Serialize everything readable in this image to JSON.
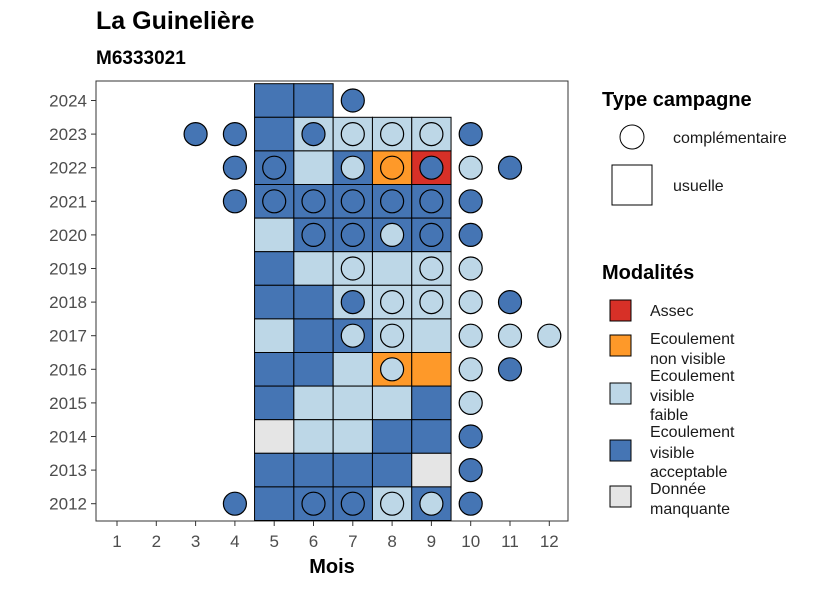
{
  "chart_data": {
    "type": "heatmap",
    "title": "La Guinelière",
    "subtitle": "M6333021",
    "xlabel": "Mois",
    "x_ticks": [
      "1",
      "2",
      "3",
      "4",
      "5",
      "6",
      "7",
      "8",
      "9",
      "10",
      "11",
      "12"
    ],
    "y_ticks": [
      "2024",
      "2023",
      "2022",
      "2021",
      "2020",
      "2019",
      "2018",
      "2017",
      "2016",
      "2015",
      "2014",
      "2013",
      "2012"
    ],
    "colors": {
      "assec": "#d73027",
      "ecoulement_non_visible": "#fe9929",
      "ecoulement_visible_faible": "#bdd7e7",
      "ecoulement_visible_acceptable": "#4575b4",
      "donnee_manquante": "#e5e5e5"
    },
    "usuelle_tiles": [
      {
        "year": 2024,
        "month": 5,
        "modalite": "ecoulement_visible_acceptable"
      },
      {
        "year": 2024,
        "month": 6,
        "modalite": "ecoulement_visible_acceptable"
      },
      {
        "year": 2023,
        "month": 5,
        "modalite": "ecoulement_visible_acceptable"
      },
      {
        "year": 2023,
        "month": 6,
        "modalite": "ecoulement_visible_faible"
      },
      {
        "year": 2023,
        "month": 7,
        "modalite": "ecoulement_visible_faible"
      },
      {
        "year": 2023,
        "month": 8,
        "modalite": "ecoulement_visible_faible"
      },
      {
        "year": 2023,
        "month": 9,
        "modalite": "ecoulement_visible_faible"
      },
      {
        "year": 2022,
        "month": 5,
        "modalite": "ecoulement_visible_acceptable"
      },
      {
        "year": 2022,
        "month": 6,
        "modalite": "ecoulement_visible_faible"
      },
      {
        "year": 2022,
        "month": 7,
        "modalite": "ecoulement_visible_acceptable"
      },
      {
        "year": 2022,
        "month": 8,
        "modalite": "ecoulement_non_visible"
      },
      {
        "year": 2022,
        "month": 9,
        "modalite": "assec"
      },
      {
        "year": 2021,
        "month": 5,
        "modalite": "ecoulement_visible_acceptable"
      },
      {
        "year": 2021,
        "month": 6,
        "modalite": "ecoulement_visible_acceptable"
      },
      {
        "year": 2021,
        "month": 7,
        "modalite": "ecoulement_visible_acceptable"
      },
      {
        "year": 2021,
        "month": 8,
        "modalite": "ecoulement_visible_acceptable"
      },
      {
        "year": 2021,
        "month": 9,
        "modalite": "ecoulement_visible_acceptable"
      },
      {
        "year": 2020,
        "month": 5,
        "modalite": "ecoulement_visible_faible"
      },
      {
        "year": 2020,
        "month": 6,
        "modalite": "ecoulement_visible_acceptable"
      },
      {
        "year": 2020,
        "month": 7,
        "modalite": "ecoulement_visible_acceptable"
      },
      {
        "year": 2020,
        "month": 8,
        "modalite": "ecoulement_visible_acceptable"
      },
      {
        "year": 2020,
        "month": 9,
        "modalite": "ecoulement_visible_acceptable"
      },
      {
        "year": 2019,
        "month": 5,
        "modalite": "ecoulement_visible_acceptable"
      },
      {
        "year": 2019,
        "month": 6,
        "modalite": "ecoulement_visible_faible"
      },
      {
        "year": 2019,
        "month": 7,
        "modalite": "ecoulement_visible_faible"
      },
      {
        "year": 2019,
        "month": 8,
        "modalite": "ecoulement_visible_faible"
      },
      {
        "year": 2019,
        "month": 9,
        "modalite": "ecoulement_visible_faible"
      },
      {
        "year": 2018,
        "month": 5,
        "modalite": "ecoulement_visible_acceptable"
      },
      {
        "year": 2018,
        "month": 6,
        "modalite": "ecoulement_visible_acceptable"
      },
      {
        "year": 2018,
        "month": 7,
        "modalite": "ecoulement_visible_faible"
      },
      {
        "year": 2018,
        "month": 8,
        "modalite": "ecoulement_visible_faible"
      },
      {
        "year": 2018,
        "month": 9,
        "modalite": "ecoulement_visible_faible"
      },
      {
        "year": 2017,
        "month": 5,
        "modalite": "ecoulement_visible_faible"
      },
      {
        "year": 2017,
        "month": 6,
        "modalite": "ecoulement_visible_acceptable"
      },
      {
        "year": 2017,
        "month": 7,
        "modalite": "ecoulement_visible_acceptable"
      },
      {
        "year": 2017,
        "month": 8,
        "modalite": "ecoulement_visible_faible"
      },
      {
        "year": 2017,
        "month": 9,
        "modalite": "ecoulement_visible_faible"
      },
      {
        "year": 2016,
        "month": 5,
        "modalite": "ecoulement_visible_acceptable"
      },
      {
        "year": 2016,
        "month": 6,
        "modalite": "ecoulement_visible_acceptable"
      },
      {
        "year": 2016,
        "month": 7,
        "modalite": "ecoulement_visible_faible"
      },
      {
        "year": 2016,
        "month": 8,
        "modalite": "ecoulement_non_visible"
      },
      {
        "year": 2016,
        "month": 9,
        "modalite": "ecoulement_non_visible"
      },
      {
        "year": 2015,
        "month": 5,
        "modalite": "ecoulement_visible_acceptable"
      },
      {
        "year": 2015,
        "month": 6,
        "modalite": "ecoulement_visible_faible"
      },
      {
        "year": 2015,
        "month": 7,
        "modalite": "ecoulement_visible_faible"
      },
      {
        "year": 2015,
        "month": 8,
        "modalite": "ecoulement_visible_faible"
      },
      {
        "year": 2015,
        "month": 9,
        "modalite": "ecoulement_visible_acceptable"
      },
      {
        "year": 2014,
        "month": 5,
        "modalite": "donnee_manquante"
      },
      {
        "year": 2014,
        "month": 6,
        "modalite": "ecoulement_visible_faible"
      },
      {
        "year": 2014,
        "month": 7,
        "modalite": "ecoulement_visible_faible"
      },
      {
        "year": 2014,
        "month": 8,
        "modalite": "ecoulement_visible_acceptable"
      },
      {
        "year": 2014,
        "month": 9,
        "modalite": "ecoulement_visible_acceptable"
      },
      {
        "year": 2013,
        "month": 5,
        "modalite": "ecoulement_visible_acceptable"
      },
      {
        "year": 2013,
        "month": 6,
        "modalite": "ecoulement_visible_acceptable"
      },
      {
        "year": 2013,
        "month": 7,
        "modalite": "ecoulement_visible_acceptable"
      },
      {
        "year": 2013,
        "month": 8,
        "modalite": "ecoulement_visible_acceptable"
      },
      {
        "year": 2013,
        "month": 9,
        "modalite": "donnee_manquante"
      },
      {
        "year": 2012,
        "month": 5,
        "modalite": "ecoulement_visible_acceptable"
      },
      {
        "year": 2012,
        "month": 6,
        "modalite": "ecoulement_visible_acceptable"
      },
      {
        "year": 2012,
        "month": 7,
        "modalite": "ecoulement_visible_acceptable"
      },
      {
        "year": 2012,
        "month": 8,
        "modalite": "ecoulement_visible_faible"
      },
      {
        "year": 2012,
        "month": 9,
        "modalite": "ecoulement_visible_acceptable"
      }
    ],
    "complementaire_points": [
      {
        "year": 2024,
        "month": 7,
        "modalite": "ecoulement_visible_acceptable"
      },
      {
        "year": 2023,
        "month": 3,
        "modalite": "ecoulement_visible_acceptable"
      },
      {
        "year": 2023,
        "month": 4,
        "modalite": "ecoulement_visible_acceptable"
      },
      {
        "year": 2023,
        "month": 6,
        "modalite": "ecoulement_visible_acceptable"
      },
      {
        "year": 2023,
        "month": 7,
        "modalite": "ecoulement_visible_faible"
      },
      {
        "year": 2023,
        "month": 8,
        "modalite": "ecoulement_visible_faible"
      },
      {
        "year": 2023,
        "month": 9,
        "modalite": "ecoulement_visible_faible"
      },
      {
        "year": 2023,
        "month": 10,
        "modalite": "ecoulement_visible_acceptable"
      },
      {
        "year": 2022,
        "month": 4,
        "modalite": "ecoulement_visible_acceptable"
      },
      {
        "year": 2022,
        "month": 5,
        "modalite": "ecoulement_visible_acceptable"
      },
      {
        "year": 2022,
        "month": 7,
        "modalite": "ecoulement_visible_faible"
      },
      {
        "year": 2022,
        "month": 8,
        "modalite": "ecoulement_non_visible"
      },
      {
        "year": 2022,
        "month": 9,
        "modalite": "ecoulement_visible_acceptable"
      },
      {
        "year": 2022,
        "month": 10,
        "modalite": "ecoulement_visible_faible"
      },
      {
        "year": 2022,
        "month": 11,
        "modalite": "ecoulement_visible_acceptable"
      },
      {
        "year": 2021,
        "month": 4,
        "modalite": "ecoulement_visible_acceptable"
      },
      {
        "year": 2021,
        "month": 5,
        "modalite": "ecoulement_visible_acceptable"
      },
      {
        "year": 2021,
        "month": 6,
        "modalite": "ecoulement_visible_acceptable"
      },
      {
        "year": 2021,
        "month": 7,
        "modalite": "ecoulement_visible_acceptable"
      },
      {
        "year": 2021,
        "month": 8,
        "modalite": "ecoulement_visible_acceptable"
      },
      {
        "year": 2021,
        "month": 9,
        "modalite": "ecoulement_visible_acceptable"
      },
      {
        "year": 2021,
        "month": 10,
        "modalite": "ecoulement_visible_acceptable"
      },
      {
        "year": 2020,
        "month": 6,
        "modalite": "ecoulement_visible_acceptable"
      },
      {
        "year": 2020,
        "month": 7,
        "modalite": "ecoulement_visible_acceptable"
      },
      {
        "year": 2020,
        "month": 8,
        "modalite": "ecoulement_visible_faible"
      },
      {
        "year": 2020,
        "month": 9,
        "modalite": "ecoulement_visible_acceptable"
      },
      {
        "year": 2020,
        "month": 10,
        "modalite": "ecoulement_visible_acceptable"
      },
      {
        "year": 2019,
        "month": 7,
        "modalite": "ecoulement_visible_faible"
      },
      {
        "year": 2019,
        "month": 9,
        "modalite": "ecoulement_visible_faible"
      },
      {
        "year": 2019,
        "month": 10,
        "modalite": "ecoulement_visible_faible"
      },
      {
        "year": 2018,
        "month": 7,
        "modalite": "ecoulement_visible_acceptable"
      },
      {
        "year": 2018,
        "month": 8,
        "modalite": "ecoulement_visible_faible"
      },
      {
        "year": 2018,
        "month": 9,
        "modalite": "ecoulement_visible_faible"
      },
      {
        "year": 2018,
        "month": 10,
        "modalite": "ecoulement_visible_faible"
      },
      {
        "year": 2018,
        "month": 11,
        "modalite": "ecoulement_visible_acceptable"
      },
      {
        "year": 2017,
        "month": 7,
        "modalite": "ecoulement_visible_faible"
      },
      {
        "year": 2017,
        "month": 8,
        "modalite": "ecoulement_visible_faible"
      },
      {
        "year": 2017,
        "month": 10,
        "modalite": "ecoulement_visible_faible"
      },
      {
        "year": 2017,
        "month": 11,
        "modalite": "ecoulement_visible_faible"
      },
      {
        "year": 2017,
        "month": 12,
        "modalite": "ecoulement_visible_faible"
      },
      {
        "year": 2016,
        "month": 8,
        "modalite": "ecoulement_visible_faible"
      },
      {
        "year": 2016,
        "month": 10,
        "modalite": "ecoulement_visible_faible"
      },
      {
        "year": 2016,
        "month": 11,
        "modalite": "ecoulement_visible_acceptable"
      },
      {
        "year": 2015,
        "month": 10,
        "modalite": "ecoulement_visible_faible"
      },
      {
        "year": 2014,
        "month": 10,
        "modalite": "ecoulement_visible_acceptable"
      },
      {
        "year": 2013,
        "month": 10,
        "modalite": "ecoulement_visible_acceptable"
      },
      {
        "year": 2012,
        "month": 4,
        "modalite": "ecoulement_visible_acceptable"
      },
      {
        "year": 2012,
        "month": 6,
        "modalite": "ecoulement_visible_acceptable"
      },
      {
        "year": 2012,
        "month": 7,
        "modalite": "ecoulement_visible_acceptable"
      },
      {
        "year": 2012,
        "month": 8,
        "modalite": "ecoulement_visible_faible"
      },
      {
        "year": 2012,
        "month": 9,
        "modalite": "ecoulement_visible_faible"
      },
      {
        "year": 2012,
        "month": 10,
        "modalite": "ecoulement_visible_acceptable"
      }
    ],
    "legend_type": {
      "title": "Type campagne",
      "items": [
        {
          "key": "complementaire",
          "label": "complémentaire"
        },
        {
          "key": "usuelle",
          "label": "usuelle"
        }
      ]
    },
    "legend_modalites": {
      "title": "Modalités",
      "items": [
        {
          "key": "assec",
          "lines": [
            "Assec"
          ]
        },
        {
          "key": "ecoulement_non_visible",
          "lines": [
            "Ecoulement",
            "non visible"
          ]
        },
        {
          "key": "ecoulement_visible_faible",
          "lines": [
            "Ecoulement",
            "visible",
            "faible"
          ]
        },
        {
          "key": "ecoulement_visible_acceptable",
          "lines": [
            "Ecoulement",
            "visible",
            "acceptable"
          ]
        },
        {
          "key": "donnee_manquante",
          "lines": [
            "Donnée",
            "manquante"
          ]
        }
      ]
    }
  }
}
